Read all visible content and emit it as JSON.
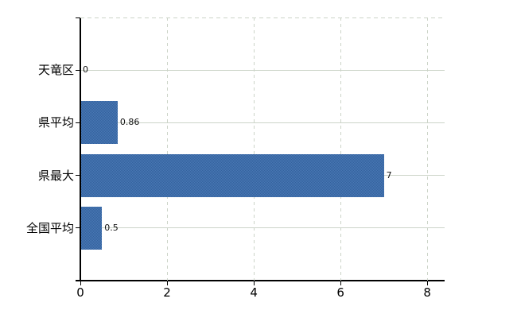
{
  "chart_data": {
    "type": "bar",
    "orientation": "horizontal",
    "title": "",
    "xlabel": "",
    "ylabel": "",
    "categories": [
      "天竜区",
      "県平均",
      "県最大",
      "全国平均"
    ],
    "values": [
      0,
      0.86,
      7,
      0.5
    ],
    "value_labels": [
      "0",
      "0.86",
      "7",
      "0.5"
    ],
    "xlim": [
      0,
      8.4
    ],
    "xticks": [
      0,
      2,
      4,
      6,
      8
    ],
    "xtick_labels": [
      "0",
      "2",
      "4",
      "6",
      "8"
    ],
    "grid": {
      "vertical_lines": "dashed",
      "horizontal_lines": "solid",
      "top_border": "dashed",
      "right_border": "none"
    },
    "legend": "none",
    "colors": {
      "bar_primary": "#3f6da9",
      "bar_dither_light": "#4a79b5",
      "bar_dither_dark": "#33619d",
      "gridline": "#ccd4c8",
      "axis": "#000000",
      "label_text": "#000000",
      "background": "#ffffff"
    }
  }
}
